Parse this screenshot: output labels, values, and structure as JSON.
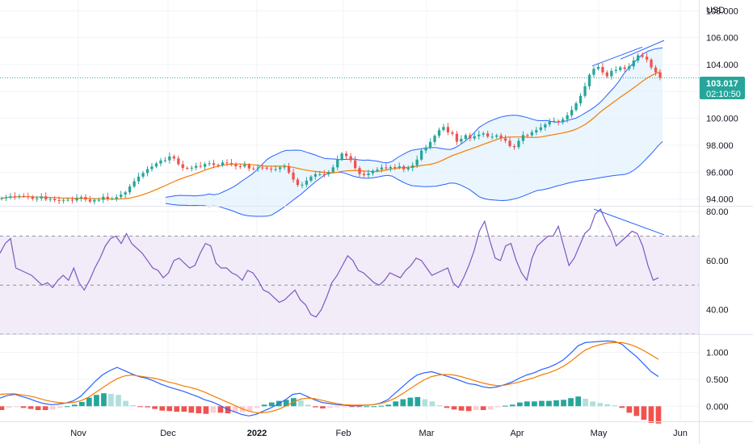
{
  "colors": {
    "up": "#26a69a",
    "down": "#ef5350",
    "bollinger": "#2962ff",
    "bollinger_fill": "#e3f2fd",
    "moving_average": "#f57c00",
    "rsi_line": "#7e57c2",
    "rsi_band_fill": "#ede7f6",
    "macd_line": "#2962ff",
    "signal_line": "#f57c00",
    "hist_up_strong": "#26a69a",
    "hist_up_weak": "#b2dfdb",
    "hist_down_strong": "#ef5350",
    "hist_down_weak": "#ffcdd2",
    "last_price_tag": "#26a69a",
    "divergence_line": "#2962ff"
  },
  "chart_data": [
    {
      "type": "candlestick",
      "pane": "price",
      "currency": "USD",
      "ylim": [
        93.5,
        108.8
      ],
      "yticks": [
        "108.000",
        "106.000",
        "104.000",
        "102.000",
        "100.000",
        "98.000",
        "96.000",
        "94.000"
      ],
      "xlabels": [
        "Nov",
        "Dec",
        "2022",
        "Feb",
        "Mar",
        "Apr",
        "May",
        "Jun"
      ],
      "last_price": "103.017",
      "countdown": "02:10:50",
      "close_series": [
        94.07,
        94.14,
        94.21,
        94.2,
        94.23,
        94.21,
        94.19,
        94.03,
        94.05,
        94.2,
        93.98,
        94.01,
        93.92,
        93.87,
        93.93,
        93.95,
        93.9,
        94.07,
        94.15,
        93.97,
        93.82,
        93.94,
        93.94,
        94.17,
        94.03,
        94.04,
        94.15,
        94.34,
        94.51,
        94.94,
        95.32,
        95.67,
        95.94,
        96.23,
        96.42,
        96.65,
        96.87,
        96.88,
        97.17,
        97.02,
        96.59,
        96.32,
        96.31,
        96.33,
        96.47,
        96.41,
        96.61,
        96.66,
        96.54,
        96.52,
        96.72,
        96.68,
        96.58,
        96.44,
        96.42,
        96.56,
        96.28,
        96.27,
        96.35,
        96.34,
        96.26,
        96.2,
        96.23,
        96.36,
        96.45,
        95.97,
        95.45,
        95.05,
        95.07,
        95.37,
        95.67,
        95.85,
        95.86,
        95.85,
        96.01,
        96.36,
        96.98,
        97.39,
        97.19,
        96.89,
        96.31,
        95.87,
        95.78,
        95.92,
        96.11,
        96.2,
        96.35,
        96.29,
        96.38,
        96.33,
        96.44,
        96.21,
        96.32,
        96.51,
        96.94,
        97.61,
        97.83,
        98.25,
        98.71,
        99.13,
        99.36,
        98.96,
        98.86,
        98.27,
        98.48,
        98.75,
        98.51,
        98.67,
        98.79,
        98.88,
        98.64,
        98.64,
        98.74,
        98.52,
        98.34,
        97.94,
        97.87,
        98.33,
        98.76,
        98.74,
        98.97,
        99.13,
        99.33,
        99.55,
        99.77,
        99.81,
        99.7,
        99.93,
        100.23,
        100.63,
        101.12,
        101.67,
        102.39,
        103.24,
        103.68,
        103.82,
        103.42,
        103.13,
        103.53,
        103.6,
        103.79,
        103.68,
        103.87,
        104.3,
        104.69,
        104.58,
        104.37,
        103.78,
        103.42,
        103.017
      ],
      "bollinger_upper": [
        94.13,
        94.19,
        94.25,
        94.28,
        94.26,
        94.26,
        94.24,
        94.27,
        94.29,
        94.38,
        94.33,
        94.39,
        94.55,
        94.72,
        94.9,
        95.13,
        95.39,
        95.63,
        95.88,
        96.2,
        96.58,
        96.94,
        97.17,
        97.33,
        97.51,
        97.62,
        97.63,
        97.64,
        97.63,
        97.51,
        97.4,
        97.28,
        97.14,
        97.03,
        96.99,
        96.98,
        96.94,
        96.95,
        96.97,
        96.98,
        96.92,
        96.89,
        96.9,
        96.86,
        96.81,
        96.73,
        96.7,
        96.81,
        97.07,
        97.28,
        97.47,
        97.63,
        97.68,
        97.74,
        97.81,
        97.84,
        97.83,
        97.78,
        97.71,
        97.69,
        97.82,
        98.03,
        98.29,
        98.58,
        98.95,
        99.34,
        99.56,
        99.76,
        99.91,
        100.04,
        100.15,
        100.2,
        100.23,
        100.22,
        100.14,
        100.06,
        99.94,
        99.84,
        99.83,
        99.84,
        99.77,
        99.72,
        99.74,
        99.81,
        99.92,
        100.01,
        100.19,
        100.41,
        100.62,
        100.87,
        101.17,
        101.53,
        101.93,
        102.32,
        102.78,
        103.32,
        103.76,
        104.12,
        104.5,
        104.8,
        104.99,
        105.12,
        105.2,
        105.25
      ],
      "bollinger_lower": [
        93.68,
        93.62,
        93.58,
        93.54,
        93.54,
        93.52,
        93.53,
        93.51,
        93.51,
        93.45,
        93.49,
        93.46,
        93.34,
        93.23,
        93.11,
        92.96,
        92.84,
        92.76,
        92.74,
        92.72,
        92.72,
        92.73,
        92.82,
        93.04,
        93.27,
        93.53,
        93.8,
        94.08,
        94.34,
        94.65,
        94.97,
        95.27,
        95.54,
        95.8,
        95.93,
        95.98,
        96.0,
        95.94,
        95.82,
        95.69,
        95.62,
        95.56,
        95.55,
        95.58,
        95.64,
        95.72,
        95.76,
        95.71,
        95.49,
        95.3,
        95.13,
        95.0,
        94.97,
        94.94,
        94.92,
        94.94,
        94.96,
        95.03,
        95.11,
        95.19,
        95.18,
        95.07,
        94.9,
        94.71,
        94.45,
        94.17,
        94.04,
        93.96,
        93.94,
        93.91,
        93.89,
        93.92,
        93.99,
        94.08,
        94.2,
        94.35,
        94.5,
        94.64,
        94.69,
        94.76,
        94.85,
        94.97,
        95.05,
        95.15,
        95.24,
        95.32,
        95.38,
        95.42,
        95.47,
        95.52,
        95.59,
        95.64,
        95.7,
        95.75,
        95.79,
        95.82,
        95.93,
        96.14,
        96.41,
        96.75,
        97.13,
        97.51,
        97.92,
        98.29
      ]
    },
    {
      "type": "line",
      "pane": "rsi",
      "ylim": [
        30,
        82
      ],
      "yticks": [
        "80.00",
        "60.00",
        "40.00"
      ],
      "bands": [
        70,
        50,
        30
      ],
      "values": [
        63,
        67,
        69,
        57,
        56,
        55,
        54,
        52,
        50,
        51,
        49,
        52,
        54,
        52,
        57,
        51,
        48,
        52,
        57,
        61,
        66,
        69,
        70,
        67,
        71,
        67,
        65,
        63,
        60,
        57,
        56,
        53,
        55,
        60,
        61,
        59,
        57,
        58,
        63,
        67,
        66,
        59,
        57,
        57,
        55,
        54,
        52,
        56,
        55,
        52,
        48,
        47,
        45,
        43,
        44,
        46,
        48,
        44,
        42,
        38,
        37,
        40,
        45,
        51,
        54,
        58,
        62,
        60,
        56,
        55,
        53,
        51,
        50,
        52,
        55,
        54,
        53,
        56,
        58,
        61,
        60,
        57,
        54,
        55,
        56,
        57,
        51,
        49,
        53,
        58,
        64,
        72,
        76,
        68,
        61,
        60,
        66,
        67,
        60,
        55,
        52,
        61,
        66,
        68,
        70,
        70,
        74,
        66,
        58,
        61,
        66,
        71,
        73,
        79,
        81,
        76,
        72,
        66,
        68,
        70,
        72,
        71,
        66,
        58,
        52,
        53
      ]
    },
    {
      "type": "line",
      "pane": "macd",
      "ylim": [
        -0.28,
        1.32
      ],
      "yticks": [
        "1.000",
        "0.500",
        "0.000"
      ],
      "series": [
        {
          "key": "macd",
          "values": [
            0.15,
            0.2,
            0.22,
            0.18,
            0.14,
            0.09,
            0.05,
            0.03,
            0.04,
            0.06,
            0.1,
            0.18,
            0.32,
            0.46,
            0.58,
            0.66,
            0.72,
            0.66,
            0.6,
            0.55,
            0.52,
            0.47,
            0.41,
            0.36,
            0.32,
            0.28,
            0.23,
            0.18,
            0.12,
            0.08,
            0.02,
            -0.05,
            -0.1,
            -0.15,
            -0.18,
            -0.15,
            -0.09,
            -0.03,
            0.04,
            0.12,
            0.22,
            0.24,
            0.18,
            0.12,
            0.07,
            0.05,
            0.03,
            0.02,
            0.01,
            0.01,
            0.02,
            0.03,
            0.06,
            0.12,
            0.24,
            0.36,
            0.48,
            0.58,
            0.62,
            0.64,
            0.6,
            0.56,
            0.52,
            0.47,
            0.42,
            0.4,
            0.36,
            0.34,
            0.36,
            0.4,
            0.45,
            0.52,
            0.58,
            0.62,
            0.68,
            0.72,
            0.78,
            0.86,
            0.98,
            1.12,
            1.18,
            1.19,
            1.2,
            1.21,
            1.2,
            1.15,
            1.03,
            0.92,
            0.78,
            0.64,
            0.55
          ]
        },
        {
          "key": "signal",
          "values": [
            0.22,
            0.23,
            0.23,
            0.21,
            0.19,
            0.16,
            0.12,
            0.09,
            0.07,
            0.06,
            0.07,
            0.1,
            0.16,
            0.25,
            0.34,
            0.43,
            0.51,
            0.56,
            0.58,
            0.56,
            0.54,
            0.52,
            0.49,
            0.45,
            0.42,
            0.38,
            0.35,
            0.31,
            0.26,
            0.2,
            0.14,
            0.08,
            0.02,
            -0.04,
            -0.09,
            -0.12,
            -0.12,
            -0.1,
            -0.06,
            0.0,
            0.07,
            0.13,
            0.15,
            0.14,
            0.11,
            0.08,
            0.05,
            0.03,
            0.02,
            0.02,
            0.02,
            0.03,
            0.05,
            0.09,
            0.15,
            0.23,
            0.32,
            0.41,
            0.49,
            0.55,
            0.58,
            0.59,
            0.58,
            0.55,
            0.51,
            0.47,
            0.43,
            0.4,
            0.38,
            0.39,
            0.42,
            0.45,
            0.49,
            0.53,
            0.58,
            0.62,
            0.67,
            0.74,
            0.83,
            0.94,
            1.04,
            1.1,
            1.14,
            1.17,
            1.18,
            1.18,
            1.15,
            1.1,
            1.03,
            0.95,
            0.87
          ]
        }
      ],
      "histogram": [
        -0.07,
        -0.03,
        -0.01,
        -0.03,
        -0.05,
        -0.07,
        -0.07,
        -0.06,
        -0.03,
        0.0,
        0.03,
        0.08,
        0.16,
        0.21,
        0.24,
        0.23,
        0.21,
        0.1,
        0.02,
        -0.01,
        -0.02,
        -0.05,
        -0.08,
        -0.09,
        -0.1,
        -0.1,
        -0.12,
        -0.13,
        -0.14,
        -0.12,
        -0.12,
        -0.13,
        -0.12,
        -0.11,
        -0.09,
        -0.03,
        0.03,
        0.07,
        0.1,
        0.12,
        0.15,
        0.11,
        0.03,
        -0.02,
        -0.04,
        -0.03,
        -0.02,
        -0.01,
        -0.01,
        -0.01,
        0.0,
        0.0,
        0.01,
        0.03,
        0.09,
        0.13,
        0.16,
        0.17,
        0.13,
        0.09,
        0.02,
        -0.03,
        -0.06,
        -0.08,
        -0.09,
        -0.07,
        -0.07,
        -0.06,
        -0.02,
        0.01,
        0.03,
        0.07,
        0.09,
        0.09,
        0.1,
        0.1,
        0.11,
        0.12,
        0.15,
        0.18,
        0.14,
        0.09,
        0.06,
        0.04,
        0.02,
        -0.03,
        -0.12,
        -0.18,
        -0.25,
        -0.31,
        -0.32
      ]
    }
  ]
}
